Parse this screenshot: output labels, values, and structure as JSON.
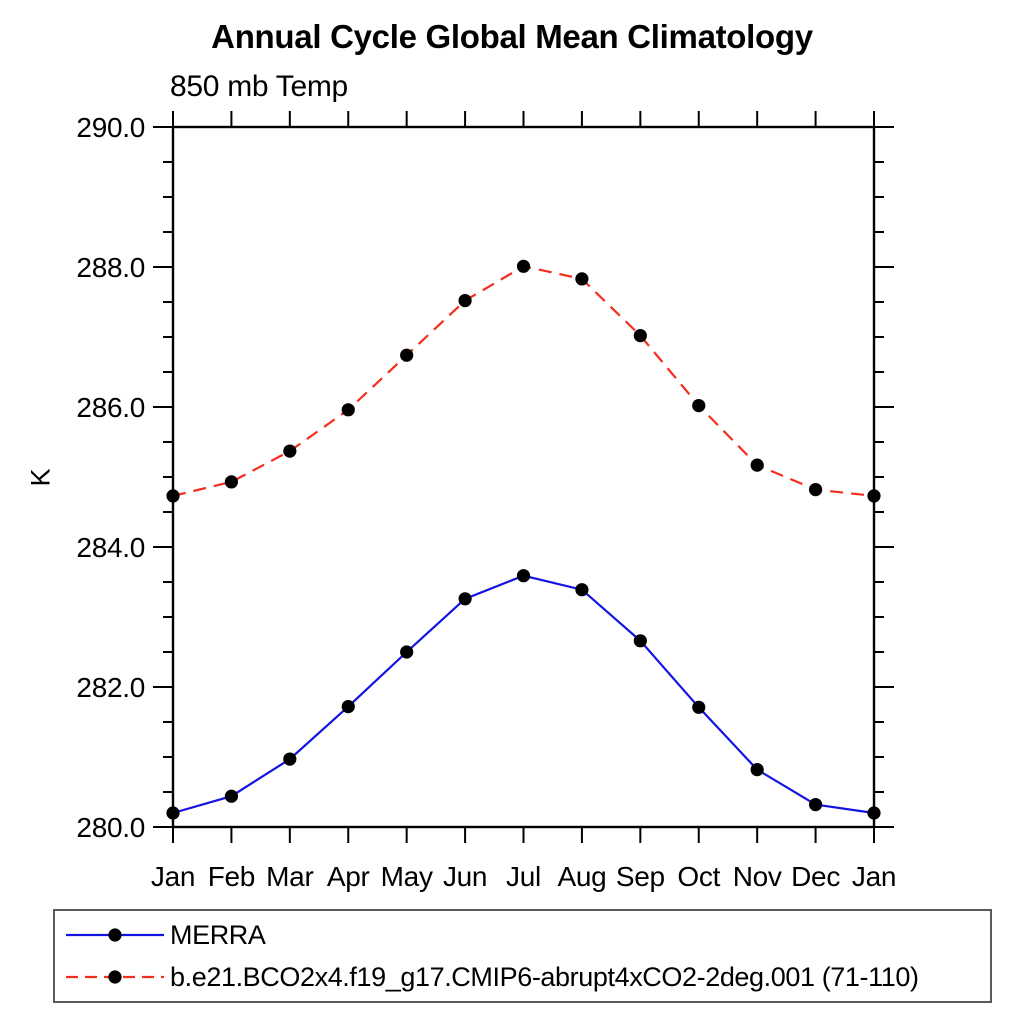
{
  "page": {
    "background": "#ffffff"
  },
  "chart_data": {
    "type": "line",
    "title": "Annual Cycle Global Mean Climatology",
    "subtitle": "850 mb Temp",
    "ylabel": "K",
    "xlabel": "",
    "x_categories": [
      "Jan",
      "Feb",
      "Mar",
      "Apr",
      "May",
      "Jun",
      "Jul",
      "Aug",
      "Sep",
      "Oct",
      "Nov",
      "Dec",
      "Jan"
    ],
    "ylim": [
      280.0,
      290.0
    ],
    "y_major_step": 2.0,
    "y_minor_step": 0.5,
    "y_tick_labels": [
      "280.0",
      "282.0",
      "284.0",
      "286.0",
      "288.0",
      "290.0"
    ],
    "grid": false,
    "legend_position": "bottom-left-box",
    "frame_color": "#000000",
    "marker": {
      "shape": "circle",
      "color": "#000000",
      "radius": 6.6
    },
    "series": [
      {
        "name": "MERRA",
        "color": "#1414e0",
        "style": "solid",
        "values": [
          280.2,
          280.44,
          280.97,
          281.72,
          282.5,
          283.26,
          283.59,
          283.39,
          282.66,
          281.71,
          280.82,
          280.32,
          280.2
        ]
      },
      {
        "name": "b.e21.BCO2x4.f19_g17.CMIP6-abrupt4xCO2-2deg.001 (71-110)",
        "color": "#f52d1e",
        "style": "dashed",
        "values": [
          284.73,
          284.93,
          285.37,
          285.96,
          286.74,
          287.52,
          288.01,
          287.83,
          287.02,
          286.02,
          285.17,
          284.82,
          284.73
        ]
      }
    ]
  }
}
